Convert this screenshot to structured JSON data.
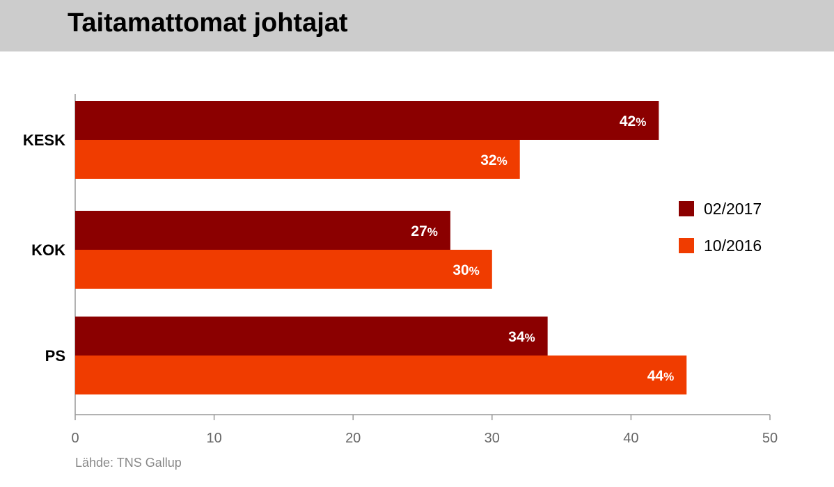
{
  "title": "Taitamattomat johtajat",
  "source": "Lähde: TNS Gallup",
  "chart_data": {
    "type": "bar",
    "orientation": "horizontal",
    "categories": [
      "KESK",
      "KOK",
      "PS"
    ],
    "series": [
      {
        "name": "02/2017",
        "values": [
          42,
          27,
          34
        ],
        "color": "#8b0000"
      },
      {
        "name": "10/2016",
        "values": [
          32,
          30,
          44
        ],
        "color": "#f03c00"
      }
    ],
    "value_suffix": "%",
    "xlim": [
      0,
      50
    ],
    "xticks": [
      0,
      10,
      20,
      30,
      40,
      50
    ],
    "grid": false,
    "legend": "right"
  }
}
